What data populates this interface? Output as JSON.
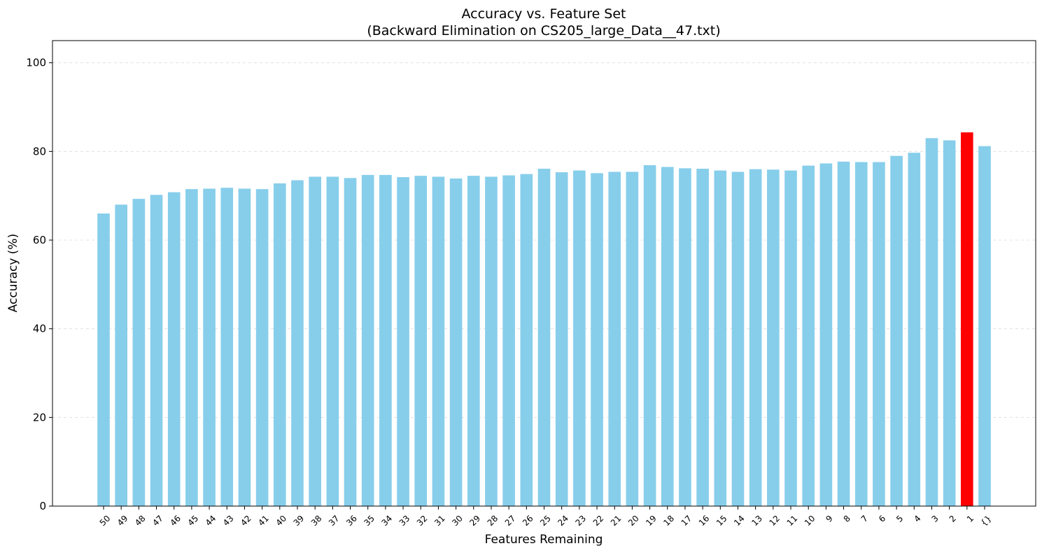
{
  "chart_data": {
    "type": "bar",
    "title": "Accuracy vs. Feature Set",
    "subtitle": "(Backward Elimination on CS205_large_Data__47.txt)",
    "xlabel": "Features Remaining",
    "ylabel": "Accuracy (%)",
    "ylim": [
      0,
      105
    ],
    "yticks": [
      0,
      20,
      40,
      60,
      80,
      100
    ],
    "grid": "y-dashed",
    "categories": [
      "50",
      "49",
      "48",
      "47",
      "46",
      "45",
      "44",
      "43",
      "42",
      "41",
      "40",
      "39",
      "38",
      "37",
      "36",
      "35",
      "34",
      "33",
      "32",
      "31",
      "30",
      "29",
      "28",
      "27",
      "26",
      "25",
      "24",
      "23",
      "22",
      "21",
      "20",
      "19",
      "18",
      "17",
      "16",
      "15",
      "14",
      "13",
      "12",
      "11",
      "10",
      "9",
      "8",
      "7",
      "6",
      "5",
      "4",
      "3",
      "2",
      "1",
      "{}"
    ],
    "values": [
      66.0,
      68.0,
      69.3,
      70.2,
      70.8,
      71.5,
      71.6,
      71.8,
      71.6,
      71.5,
      72.8,
      73.5,
      74.3,
      74.3,
      74.0,
      74.7,
      74.7,
      74.2,
      74.5,
      74.3,
      73.9,
      74.5,
      74.3,
      74.6,
      74.9,
      76.1,
      75.3,
      75.7,
      75.1,
      75.4,
      75.4,
      76.9,
      76.5,
      76.2,
      76.1,
      75.7,
      75.4,
      76.0,
      75.9,
      75.7,
      76.8,
      77.3,
      77.7,
      77.6,
      77.6,
      79.0,
      79.7,
      83.0,
      82.5,
      84.3,
      81.2
    ],
    "highlight_index": 49,
    "colors": {
      "bar": "#87ceeb",
      "highlight": "#ff0000"
    }
  }
}
